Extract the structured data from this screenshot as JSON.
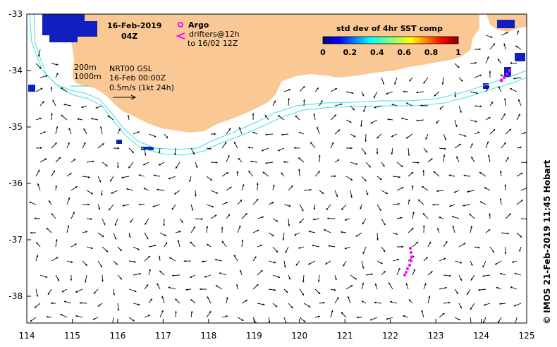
{
  "map": {
    "date_title": "16-Feb-2019",
    "time_title": "04Z",
    "argo_label": "Argo",
    "drifters_line1": "drifters@12h",
    "drifters_line2": "to 16/02 12Z",
    "depth_200": "200m",
    "depth_1000": "1000m",
    "model_name": "NRT00 GSL",
    "model_time": "16-Feb 00:00Z",
    "scale_text": "0.5m/s (1kt 24h)",
    "credit": "© IMOS 21-Feb-2019 11:45 Hobart",
    "colors": {
      "land": "#f9c894",
      "isobath": "#40e0e0",
      "argo": "#ff00ff",
      "drifter": "#ff00ff",
      "sst_patch": "#1020c0"
    }
  },
  "colorbar": {
    "title": "std dev of 4hr SST comp",
    "ticks": [
      "0",
      "0.2",
      "0.4",
      "0.6",
      "0.8",
      "1"
    ],
    "min": 0,
    "max": 1
  },
  "axes": {
    "x_ticks": [
      "114",
      "115",
      "116",
      "117",
      "118",
      "119",
      "120",
      "121",
      "122",
      "123",
      "124",
      "125"
    ],
    "y_ticks": [
      "-33",
      "-34",
      "-35",
      "-36",
      "-37",
      "-38"
    ],
    "lon_range": [
      114,
      125
    ],
    "lat_range": [
      -38.5,
      -33
    ]
  }
}
